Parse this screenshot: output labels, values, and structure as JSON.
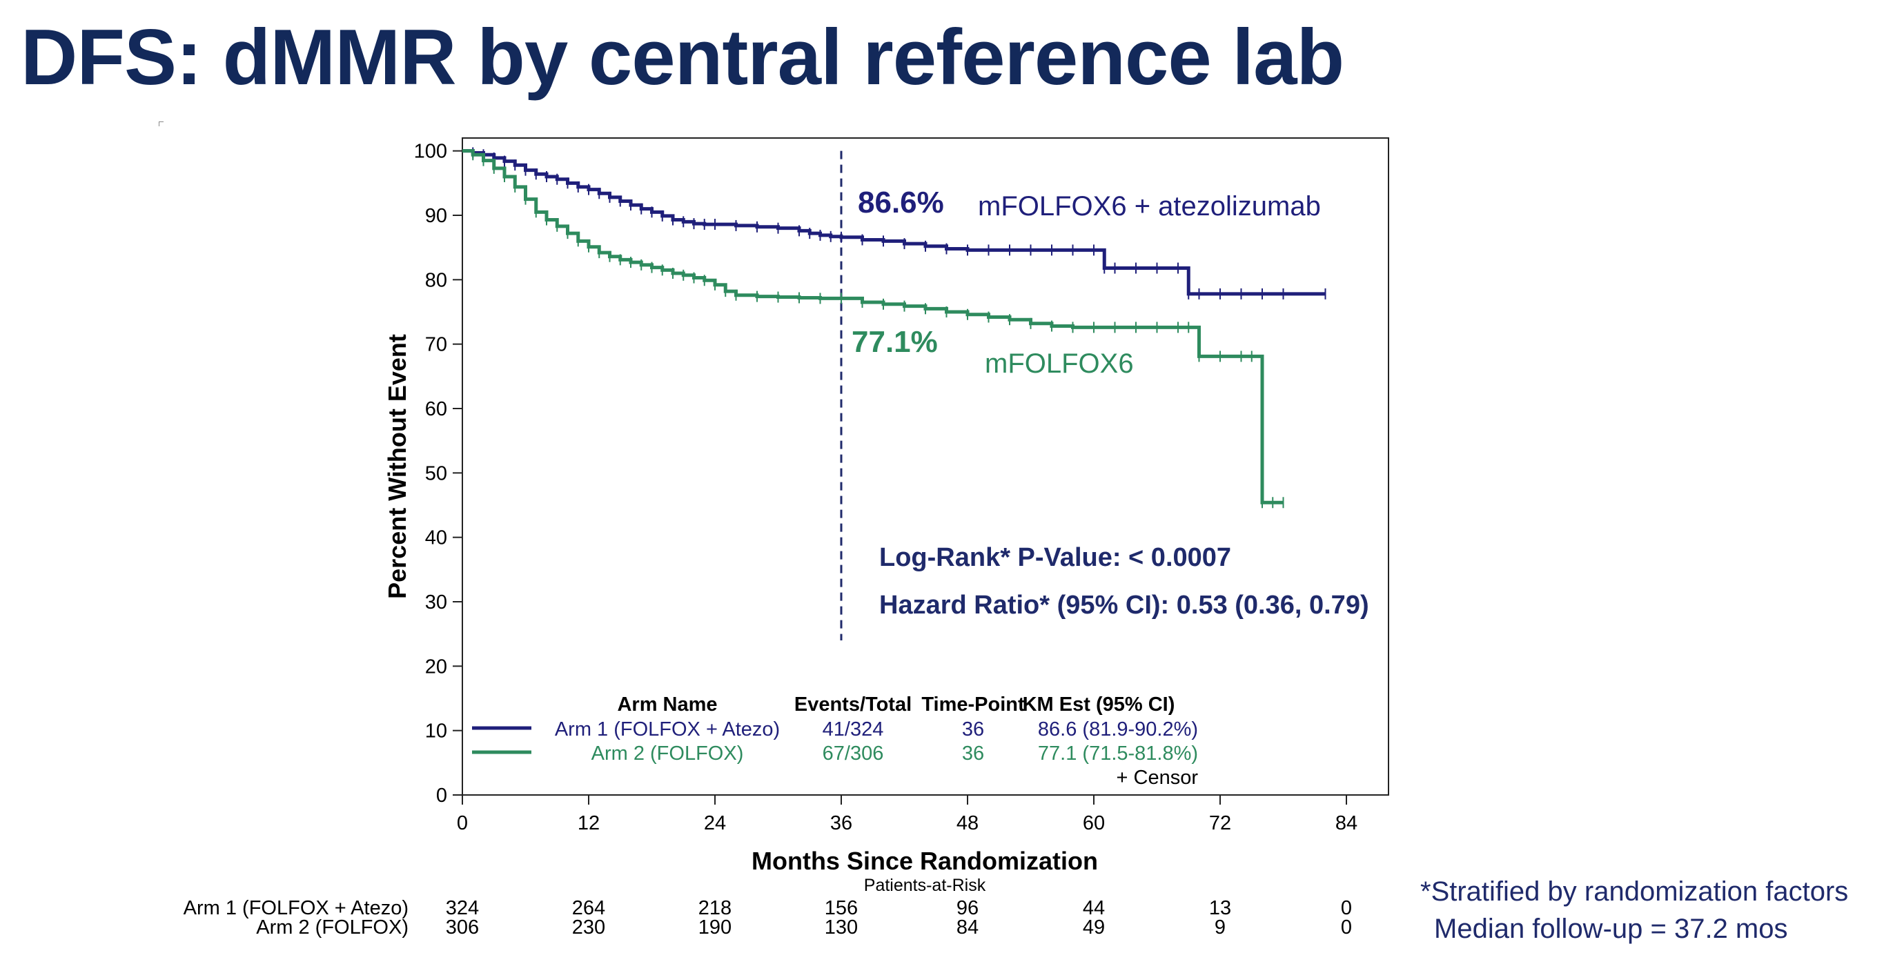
{
  "page": {
    "title": "DFS: dMMR by central reference lab"
  },
  "colors": {
    "arm1": "#1f1f7a",
    "arm2": "#2e8b5e",
    "title": "#13295a",
    "annotation": "#1f2a6b"
  },
  "chart_data": {
    "type": "line",
    "subtype": "kaplan-meier",
    "xlabel": "Months Since Randomization",
    "ylabel": "Percent Without Event",
    "xlim": [
      0,
      88
    ],
    "ylim": [
      0,
      102
    ],
    "xticks": [
      "0",
      "12",
      "24",
      "36",
      "48",
      "60",
      "72",
      "84"
    ],
    "yticks": [
      "0",
      "10",
      "20",
      "30",
      "40",
      "50",
      "60",
      "70",
      "80",
      "90",
      "100"
    ],
    "grid": false,
    "reference_line": {
      "x": 36
    },
    "series": [
      {
        "name": "Arm 1 (FOLFOX + Atezo)",
        "color": "#1f1f7a",
        "label": "mFOLFOX6 + atezolizumab",
        "point_estimate": "86.6%",
        "x": [
          0,
          1,
          2,
          3,
          4,
          5,
          6,
          7,
          8,
          9,
          10,
          11,
          12,
          13,
          14,
          15,
          16,
          17,
          18,
          19,
          20,
          21,
          22,
          23,
          24,
          26,
          28,
          30,
          32,
          33,
          34,
          35,
          36,
          38,
          40,
          42,
          44,
          46,
          48,
          50,
          52,
          54,
          56,
          58,
          60,
          61,
          62,
          64,
          66,
          68,
          69,
          70,
          72,
          74,
          76,
          78,
          82
        ],
        "y": [
          100,
          99.7,
          99.4,
          98.9,
          98.4,
          97.8,
          97,
          96.4,
          96,
          95.6,
          95,
          94.4,
          94,
          93.4,
          92.8,
          92.2,
          91.6,
          91,
          90.5,
          89.9,
          89.3,
          89,
          88.7,
          88.6,
          88.6,
          88.4,
          88.2,
          88,
          87.6,
          87.2,
          86.9,
          86.7,
          86.6,
          86.2,
          86,
          85.6,
          85.2,
          84.8,
          84.6,
          84.6,
          84.6,
          84.6,
          84.6,
          84.6,
          84.6,
          81.8,
          81.8,
          81.8,
          81.8,
          81.8,
          77.8,
          77.8,
          77.8,
          77.8,
          77.8,
          77.8,
          77.8
        ]
      },
      {
        "name": "Arm 2 (FOLFOX)",
        "color": "#2e8b5e",
        "label": "mFOLFOX6",
        "point_estimate": "77.1%",
        "x": [
          0,
          1,
          2,
          3,
          4,
          5,
          6,
          7,
          8,
          9,
          10,
          11,
          12,
          13,
          14,
          15,
          16,
          17,
          18,
          19,
          20,
          21,
          22,
          23,
          24,
          25,
          26,
          28,
          30,
          32,
          34,
          36,
          38,
          40,
          42,
          44,
          46,
          48,
          50,
          52,
          54,
          56,
          58,
          60,
          62,
          64,
          66,
          68,
          69,
          70,
          72,
          74,
          75,
          76,
          77,
          78
        ],
        "y": [
          100,
          99.4,
          98.5,
          97.3,
          96,
          94.4,
          92.5,
          90.5,
          89.3,
          88.3,
          87.2,
          86,
          85.1,
          84.2,
          83.6,
          83.1,
          82.7,
          82.3,
          81.9,
          81.5,
          81,
          80.7,
          80.3,
          79.9,
          79.2,
          78.2,
          77.6,
          77.4,
          77.3,
          77.2,
          77.1,
          77.1,
          76.5,
          76.2,
          75.9,
          75.5,
          75,
          74.6,
          74.2,
          73.8,
          73.2,
          72.8,
          72.6,
          72.6,
          72.6,
          72.6,
          72.6,
          72.6,
          72.6,
          68.1,
          68.1,
          68.1,
          68.1,
          45.4,
          45.4,
          45.4
        ]
      }
    ],
    "legend_table": {
      "headers": [
        "Arm Name",
        "Events/Total",
        "Time-Point",
        "KM Est (95% CI)"
      ],
      "rows": [
        {
          "arm": "Arm 1 (FOLFOX + Atezo)",
          "events": "41/324",
          "timepoint": "36",
          "km_est": "86.6 (81.9-90.2%)"
        },
        {
          "arm": "Arm 2 (FOLFOX)",
          "events": "67/306",
          "timepoint": "36",
          "km_est": "77.1 (71.5-81.8%)"
        }
      ],
      "censor_label": "+ Censor"
    },
    "annotations": {
      "logrank": "Log-Rank* P-Value: < 0.0007",
      "hazard_ratio": "Hazard Ratio* (95% CI): 0.53 (0.36, 0.79)"
    },
    "at_risk": {
      "title": "Patients-at-Risk",
      "rows": [
        {
          "label": "Arm 1 (FOLFOX + Atezo)",
          "values": [
            "324",
            "264",
            "218",
            "156",
            "96",
            "44",
            "13",
            "0"
          ]
        },
        {
          "label": "Arm 2 (FOLFOX)",
          "values": [
            "306",
            "230",
            "190",
            "130",
            "84",
            "49",
            "9",
            "0"
          ]
        }
      ]
    }
  },
  "footnotes": {
    "stratified": "*Stratified by randomization factors",
    "median": "Median follow-up = 37.2 mos"
  }
}
